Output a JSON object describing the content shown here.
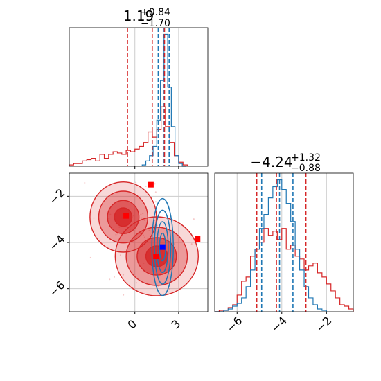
{
  "titles": {
    "p1": {
      "main": "1.19",
      "sup": "+0.84",
      "sub": "−1.70"
    },
    "p2": {
      "main": "−4.24",
      "sup": "+1.32",
      "sub": "−0.88"
    }
  },
  "colors": {
    "red": "#d62728",
    "blue": "#1f77b4",
    "marker_blue": "#0000ff",
    "marker_red": "#ff0000",
    "grid": "#cccccc"
  },
  "chart_data": [
    {
      "type": "histogram",
      "panel": "marginal-param-1",
      "xlim": [
        -4.5,
        5.0
      ],
      "grid": true,
      "tick_labels_shown": false,
      "series": [
        {
          "color": "red",
          "bin_edges": [
            -4.5,
            -4.2,
            -3.9,
            -3.6,
            -3.3,
            -3.0,
            -2.7,
            -2.4,
            -2.1,
            -1.8,
            -1.5,
            -1.2,
            -0.9,
            -0.6,
            -0.3,
            0.0,
            0.3,
            0.6,
            0.9,
            1.2,
            1.5,
            1.8,
            2.1,
            2.4,
            2.7,
            3.0,
            3.3,
            3.6
          ],
          "counts": [
            1,
            2,
            2,
            4,
            5,
            6,
            4,
            9,
            6,
            9,
            11,
            10,
            9,
            12,
            11,
            13,
            15,
            18,
            26,
            22,
            28,
            45,
            30,
            18,
            8,
            3,
            1
          ]
        },
        {
          "color": "blue",
          "bin_edges": [
            0.5,
            0.75,
            1.0,
            1.25,
            1.5,
            1.75,
            2.0,
            2.25,
            2.5,
            2.75,
            3.0,
            3.25,
            3.5
          ],
          "counts": [
            1,
            4,
            8,
            15,
            35,
            65,
            100,
            60,
            30,
            8,
            2,
            0
          ]
        }
      ],
      "quantile_lines": [
        {
          "color": "red",
          "values": [
            -0.51,
            1.19,
            2.03
          ]
        },
        {
          "color": "blue",
          "values": [
            1.6,
            1.95,
            2.35
          ]
        }
      ]
    },
    {
      "type": "histogram",
      "panel": "marginal-param-2",
      "xlim": [
        -7.0,
        -0.8
      ],
      "xticks": [
        -6,
        -4,
        -2
      ],
      "xtick_labels": [
        "−6",
        "−4",
        "−2"
      ],
      "grid": true,
      "series": [
        {
          "color": "red",
          "bin_edges": [
            -7.0,
            -6.8,
            -6.6,
            -6.4,
            -6.2,
            -6.0,
            -5.8,
            -5.6,
            -5.4,
            -5.2,
            -5.0,
            -4.8,
            -4.6,
            -4.4,
            -4.2,
            -4.0,
            -3.8,
            -3.6,
            -3.4,
            -3.2,
            -3.0,
            -2.8,
            -2.6,
            -2.4,
            -2.2,
            -2.0,
            -1.8,
            -1.6,
            -1.4,
            -1.2,
            -1.0,
            -0.8
          ],
          "counts": [
            0,
            1,
            1,
            3,
            5,
            12,
            22,
            25,
            40,
            45,
            50,
            60,
            55,
            58,
            52,
            60,
            45,
            48,
            40,
            38,
            30,
            33,
            35,
            28,
            25,
            20,
            15,
            10,
            5,
            4,
            2
          ]
        },
        {
          "color": "blue",
          "bin_edges": [
            -7.0,
            -6.8,
            -6.6,
            -6.4,
            -6.2,
            -6.0,
            -5.8,
            -5.6,
            -5.4,
            -5.2,
            -5.0,
            -4.8,
            -4.6,
            -4.4,
            -4.2,
            -4.0,
            -3.8,
            -3.6,
            -3.4,
            -3.2,
            -3.0,
            -2.8,
            -2.6,
            -2.4,
            -2.2,
            -2.0
          ],
          "counts": [
            0,
            0,
            1,
            2,
            4,
            6,
            10,
            18,
            30,
            45,
            60,
            70,
            82,
            90,
            95,
            88,
            78,
            65,
            45,
            30,
            18,
            10,
            5,
            2,
            1
          ]
        }
      ],
      "quantile_lines": [
        {
          "color": "red",
          "values": [
            -5.12,
            -4.24,
            -2.92
          ]
        },
        {
          "color": "blue",
          "values": [
            -4.9,
            -4.1,
            -3.5
          ]
        }
      ]
    },
    {
      "type": "contour",
      "panel": "joint-param-1-param-2",
      "xlim": [
        -4.5,
        5.0
      ],
      "ylim": [
        -7.0,
        -1.0
      ],
      "xticks": [
        0,
        3
      ],
      "xtick_labels": [
        "0",
        "3"
      ],
      "yticks": [
        -2,
        -4,
        -6
      ],
      "ytick_labels": [
        "−2",
        "−4",
        "−6"
      ],
      "grid": true,
      "red_density_blobs": [
        {
          "cx": -0.8,
          "cy": -2.9,
          "sx": 1.2,
          "sy": 0.8
        },
        {
          "cx": 1.5,
          "cy": -4.6,
          "sx": 1.5,
          "sy": 0.9
        }
      ],
      "blue_density_blobs": [
        {
          "cx": 1.9,
          "cy": -4.2,
          "sx": 0.35,
          "sy": 1.0
        }
      ],
      "markers": [
        {
          "color": "red",
          "x": -0.6,
          "y": -2.85
        },
        {
          "color": "red",
          "x": 1.1,
          "y": -1.5
        },
        {
          "color": "red",
          "x": 4.3,
          "y": -3.85
        },
        {
          "color": "red",
          "x": 1.45,
          "y": -4.6
        },
        {
          "color": "blue",
          "x": 1.9,
          "y": -4.2
        }
      ]
    }
  ]
}
